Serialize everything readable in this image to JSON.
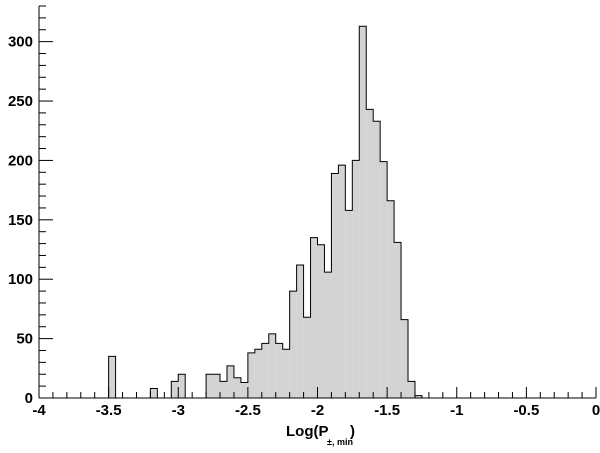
{
  "chart_data": {
    "type": "bar",
    "subtype": "histogram",
    "title": "",
    "xlabel": {
      "main": "Log(P",
      "subscript": "±, min",
      "close": ")"
    },
    "ylabel": "",
    "xlim": [
      -4,
      0
    ],
    "ylim": [
      0,
      330
    ],
    "x_tick_labels": [
      "-4",
      "-3.5",
      "-3",
      "-2.5",
      "-2",
      "-1.5",
      "-1",
      "-0.5",
      "0"
    ],
    "x_tick_values": [
      -4,
      -3.5,
      -3,
      -2.5,
      -2,
      -1.5,
      -1,
      -0.5,
      0
    ],
    "y_tick_labels": [
      "0",
      "50",
      "100",
      "150",
      "200",
      "250",
      "300"
    ],
    "y_tick_values": [
      0,
      50,
      100,
      150,
      200,
      250,
      300
    ],
    "grid": false,
    "legend": "none",
    "fill_color": "#d3d3d3",
    "line_color": "#000000",
    "bin_edges": [
      -4.0,
      -3.95,
      -3.9,
      -3.85,
      -3.8,
      -3.75,
      -3.7,
      -3.65,
      -3.6,
      -3.55,
      -3.5,
      -3.45,
      -3.4,
      -3.35,
      -3.3,
      -3.25,
      -3.2,
      -3.15,
      -3.1,
      -3.05,
      -3.0,
      -2.95,
      -2.9,
      -2.85,
      -2.8,
      -2.75,
      -2.7,
      -2.65,
      -2.6,
      -2.55,
      -2.5,
      -2.45,
      -2.4,
      -2.35,
      -2.3,
      -2.25,
      -2.2,
      -2.15,
      -2.1,
      -2.05,
      -2.0,
      -1.95,
      -1.9,
      -1.85,
      -1.8,
      -1.75,
      -1.7,
      -1.65,
      -1.6,
      -1.55,
      -1.5,
      -1.45,
      -1.4,
      -1.35,
      -1.3,
      -1.25,
      -1.2,
      -1.15,
      -1.1,
      -1.05,
      -1.0,
      -0.95,
      -0.9,
      -0.85,
      -0.8,
      -0.75,
      -0.7,
      -0.65,
      -0.6,
      -0.55,
      -0.5,
      -0.45,
      -0.4,
      -0.35,
      -0.3,
      -0.25,
      -0.2,
      -0.15,
      -0.1,
      -0.05,
      0.0
    ],
    "counts": [
      0,
      0,
      0,
      0,
      0,
      0,
      0,
      0,
      0,
      0,
      35,
      0,
      0,
      0,
      0,
      0,
      8,
      0,
      0,
      14,
      20,
      0,
      0,
      0,
      20,
      20,
      14,
      27,
      17,
      13,
      38,
      41,
      46,
      54,
      46,
      41,
      90,
      112,
      68,
      135,
      129,
      106,
      189,
      196,
      158,
      200,
      313,
      243,
      233,
      199,
      166,
      131,
      66,
      14,
      2,
      0,
      0,
      0,
      0,
      0,
      0,
      0,
      0,
      0,
      0,
      0,
      0,
      0,
      0,
      0,
      0,
      0,
      0,
      0,
      0,
      0,
      0,
      0,
      0,
      0
    ]
  }
}
